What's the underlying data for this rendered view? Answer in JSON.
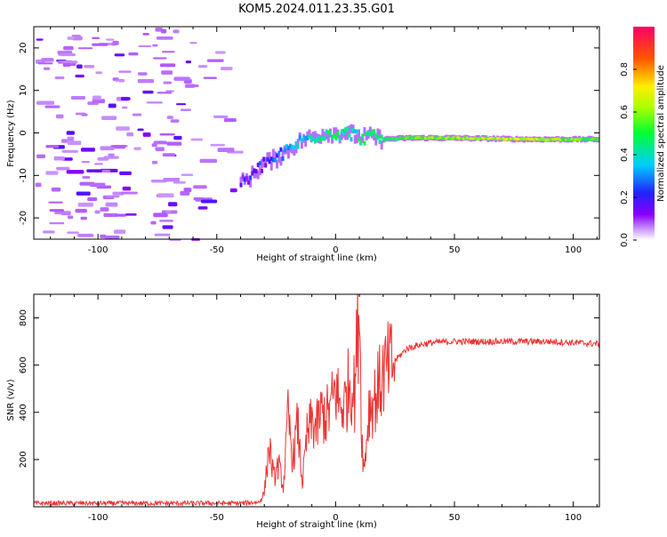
{
  "figure_title": "KOM5.2024.011.23.35.G01",
  "chart_data": [
    {
      "type": "heatmap",
      "name": "spectrogram",
      "xlabel": "Height of straight line (km)",
      "ylabel": "Frequency (Hz)",
      "xlim": [
        -127,
        111
      ],
      "ylim": [
        -25,
        25
      ],
      "xticks": [
        -100,
        -50,
        0,
        50,
        100
      ],
      "yticks": [
        -20,
        -10,
        0,
        10,
        20
      ],
      "colorbar": {
        "label": "Normalized spectral amplitude",
        "range": [
          0,
          1
        ],
        "ticks": [
          "0.0",
          "0.2",
          "0.4",
          "0.6",
          "0.8"
        ],
        "colormap": "hsv-rainbow (purple→blue→cyan→green→yellow→red)"
      },
      "signal_track": {
        "description_values": "frequency (Hz) of dominant signal vs height (km)",
        "x": [
          -40,
          -35,
          -30,
          -25,
          -20,
          -15,
          -10,
          -5,
          0,
          5,
          10,
          15,
          20,
          30,
          50,
          80,
          111
        ],
        "y": [
          -12,
          -10,
          -7,
          -6,
          -4,
          -2,
          -1,
          0,
          0,
          0,
          -1,
          -1,
          -1.5,
          -1.2,
          -1.2,
          -1.5,
          -1.5
        ],
        "amplitude": [
          0.15,
          0.2,
          0.2,
          0.25,
          0.3,
          0.35,
          0.4,
          0.45,
          0.45,
          0.4,
          0.4,
          0.45,
          0.5,
          0.55,
          0.6,
          0.65,
          0.5
        ]
      },
      "noise_region_x": [
        -127,
        -40
      ]
    },
    {
      "type": "line",
      "name": "snr",
      "xlabel": "Height of straight line (km)",
      "ylabel": "SNR (v/v)",
      "xlim": [
        -127,
        111
      ],
      "ylim": [
        0,
        900
      ],
      "xticks": [
        -100,
        -50,
        0,
        50,
        100
      ],
      "yticks": [
        200,
        400,
        600,
        800
      ],
      "color": "#ee3333",
      "series": [
        {
          "x": [
            -127,
            -110,
            -90,
            -70,
            -50,
            -40,
            -32,
            -30,
            -28,
            -26,
            -24,
            -22,
            -20,
            -18,
            -16,
            -14,
            -12,
            -10,
            -8,
            -6,
            -4,
            -2,
            0,
            2,
            4,
            6,
            8,
            10,
            11,
            12,
            14,
            16,
            18,
            20,
            25,
            30,
            35,
            40,
            50,
            60,
            70,
            80,
            90,
            100,
            111
          ],
          "y": [
            15,
            15,
            15,
            15,
            15,
            15,
            20,
            60,
            260,
            120,
            180,
            80,
            380,
            200,
            350,
            100,
            300,
            360,
            330,
            400,
            380,
            420,
            500,
            420,
            440,
            540,
            480,
            900,
            300,
            150,
            420,
            450,
            500,
            560,
            620,
            670,
            685,
            695,
            700,
            700,
            700,
            700,
            700,
            695,
            690
          ]
        }
      ]
    }
  ]
}
